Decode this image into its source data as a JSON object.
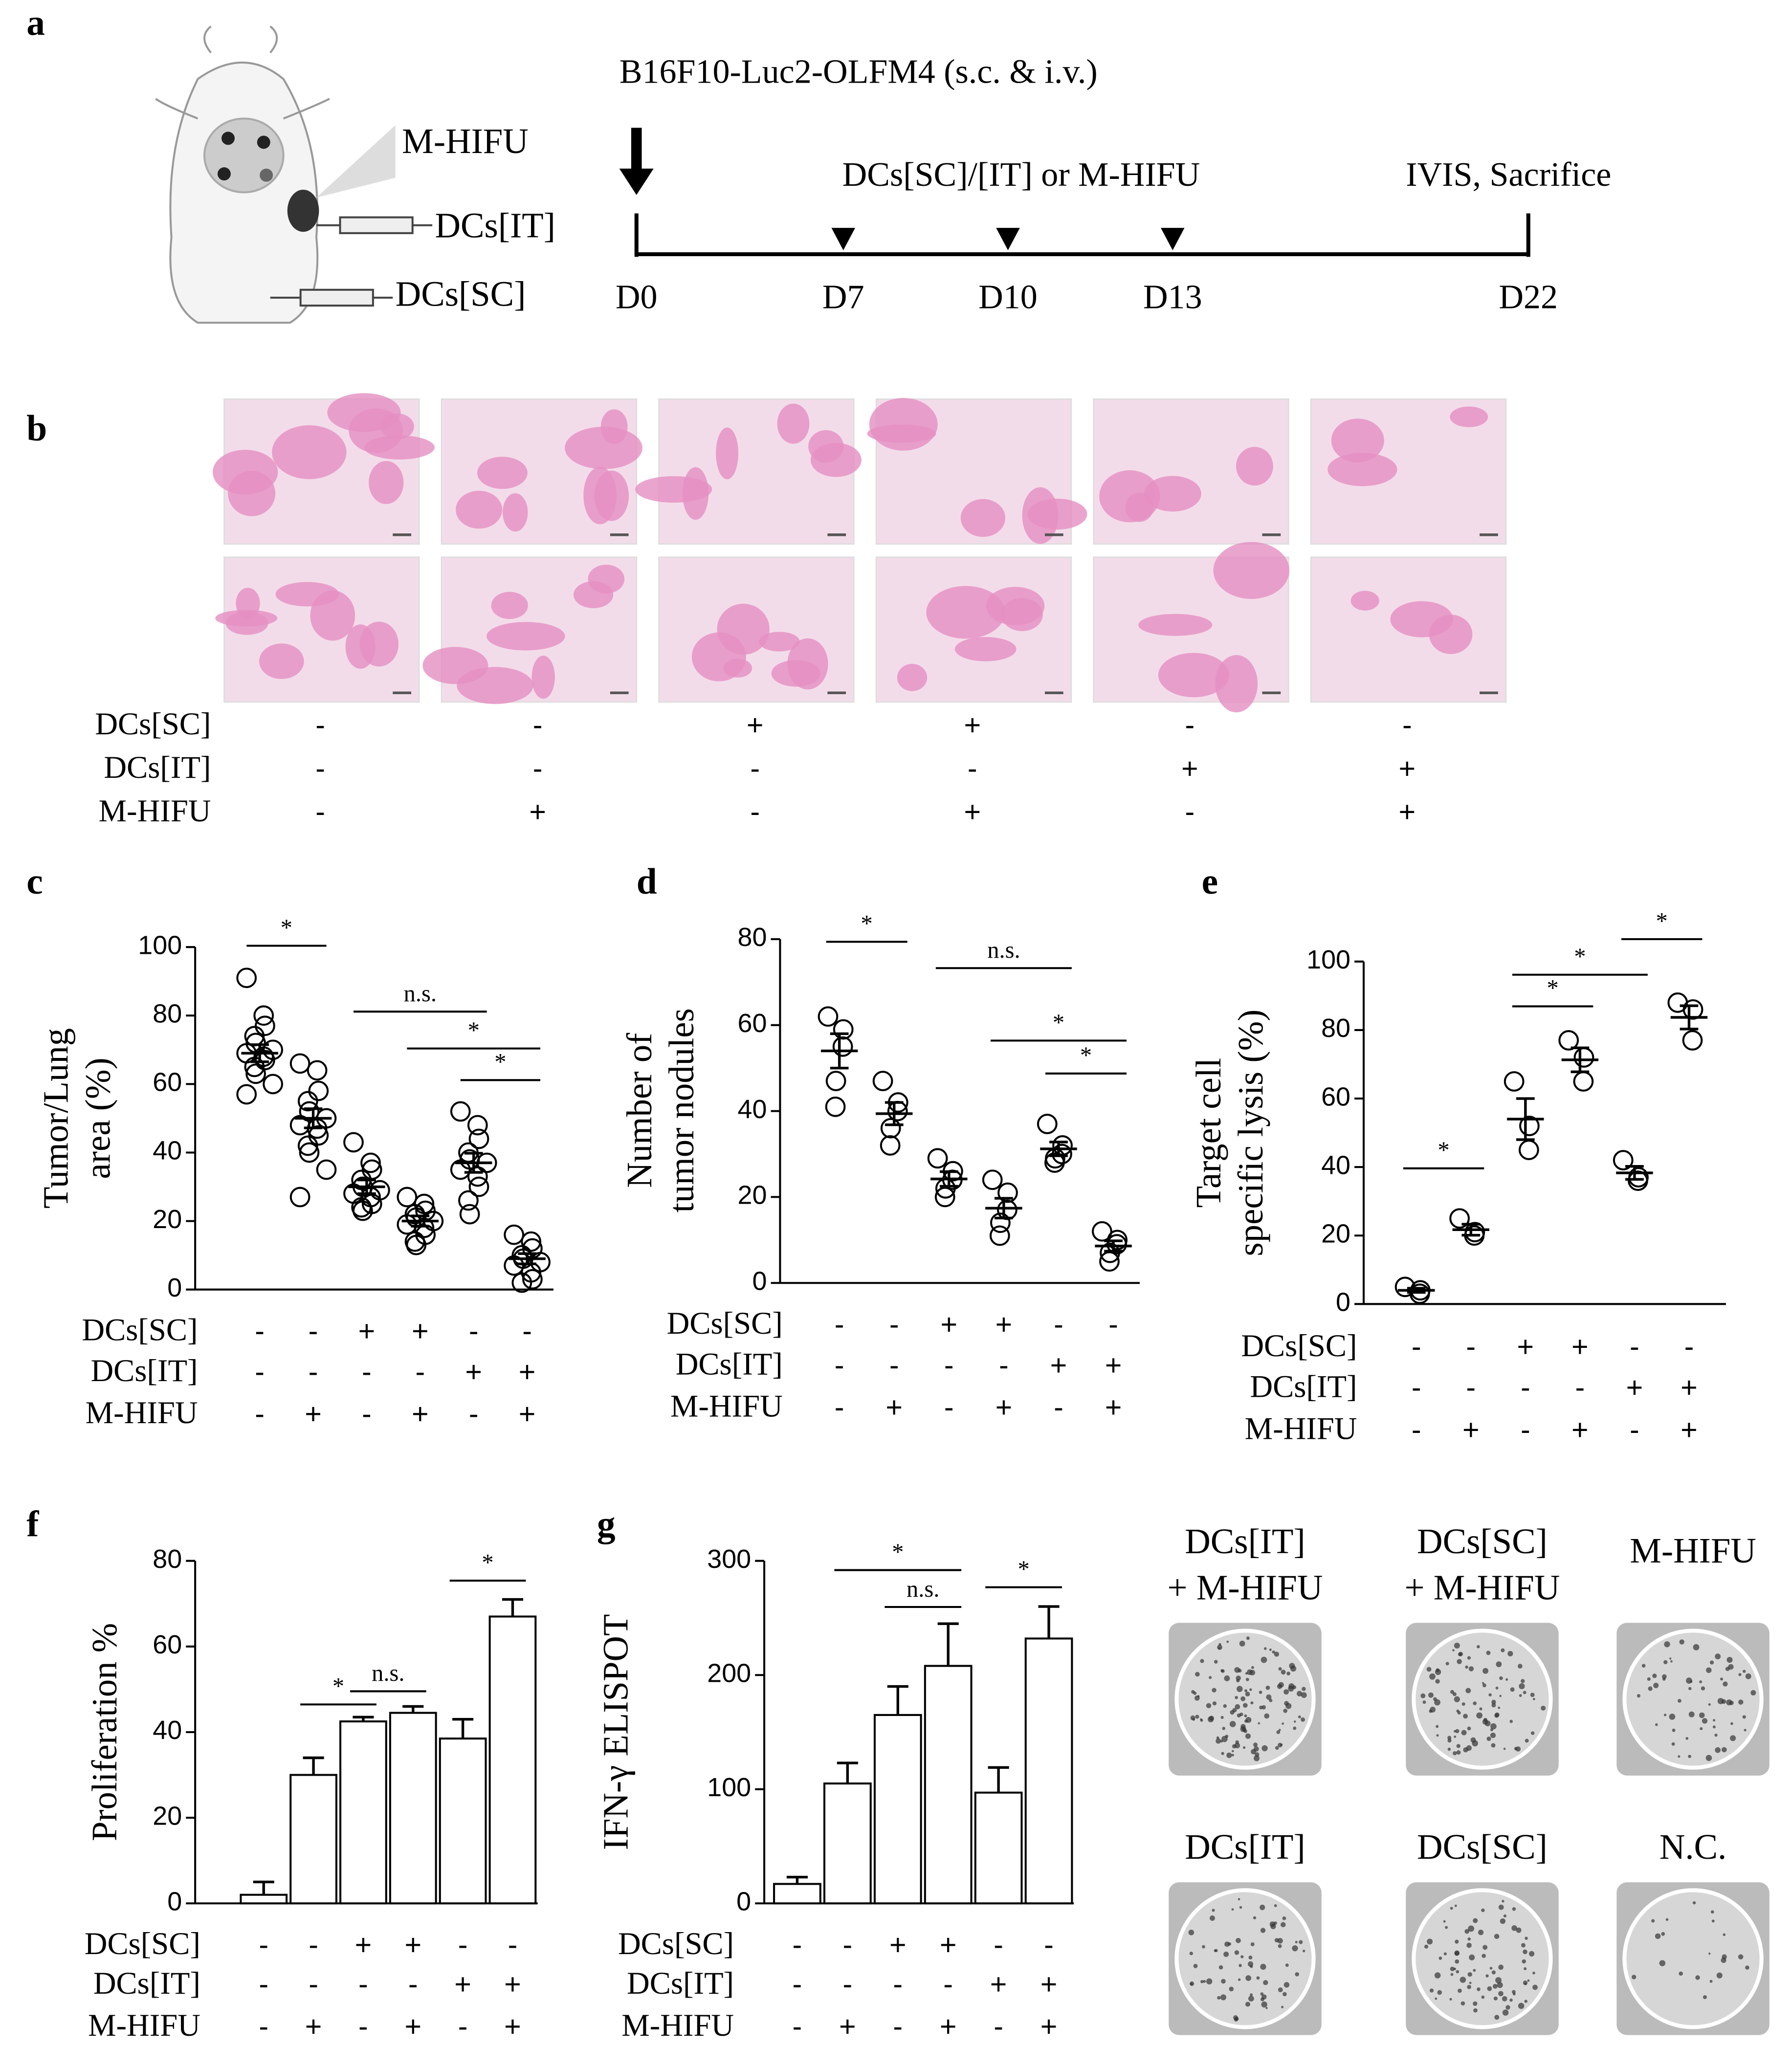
{
  "panel_labels": [
    "a",
    "b",
    "c",
    "d",
    "e",
    "f",
    "g"
  ],
  "schematic": {
    "injection_labels": [
      "M-HIFU",
      "DCs[IT]",
      "DCs[SC]"
    ],
    "cell_line": "B16F10-Luc2-OLFM4 (s.c. & i.v.)",
    "treatment_window": "DCs[SC]/[IT] or M-HIFU",
    "endpoint": "IVIS, Sacrifice",
    "days": [
      "D0",
      "D7",
      "D10",
      "D13",
      "D22"
    ]
  },
  "histology": {
    "treatments": [
      {
        "label": "DCs[SC]",
        "signs": [
          "-",
          "-",
          "+",
          "+",
          "-",
          "-"
        ]
      },
      {
        "label": "DCs[IT]",
        "signs": [
          "-",
          "-",
          "-",
          "-",
          "+",
          "+"
        ]
      },
      {
        "label": "M-HIFU",
        "signs": [
          "-",
          "+",
          "-",
          "+",
          "-",
          "+"
        ]
      }
    ]
  },
  "chart_data": [
    {
      "type": "dotplot",
      "y_label": [
        "Tumor/Lung",
        "area (%)"
      ],
      "ylim": [
        0,
        100
      ],
      "yticks": [
        0,
        20,
        40,
        60,
        80,
        100
      ],
      "values": [
        69,
        50,
        30,
        20,
        37,
        9
      ],
      "errors": [
        2.5,
        2.8,
        2,
        1.5,
        2.8,
        1.5
      ],
      "points": [
        [
          91,
          80,
          77,
          74,
          72,
          70,
          69,
          68,
          67,
          65,
          63,
          60,
          57
        ],
        [
          66,
          64,
          58,
          55,
          52,
          50,
          48,
          47,
          45,
          42,
          40,
          35,
          27
        ],
        [
          43,
          37,
          35,
          32,
          30,
          29,
          28,
          27,
          25,
          24,
          23
        ],
        [
          27,
          25,
          23,
          22,
          21,
          20,
          19,
          18,
          16,
          14,
          13
        ],
        [
          52,
          48,
          44,
          40,
          38,
          37,
          35,
          33,
          30,
          26,
          22
        ],
        [
          16,
          14,
          12,
          10,
          9,
          8,
          7,
          5,
          3,
          2
        ]
      ],
      "comparisons": [
        {
          "label": "*",
          "groups": [
            0,
            1
          ]
        },
        {
          "label": "n.s.",
          "groups": [
            2,
            4
          ]
        },
        {
          "label": "*",
          "groups": [
            3,
            5
          ]
        },
        {
          "label": "*",
          "groups": [
            4,
            5
          ]
        }
      ],
      "treatments": [
        {
          "label": "DCs[SC]",
          "signs": [
            "-",
            "-",
            "+",
            "+",
            "-",
            "-"
          ]
        },
        {
          "label": "DCs[IT]",
          "signs": [
            "-",
            "-",
            "-",
            "-",
            "+",
            "+"
          ]
        },
        {
          "label": "M-HIFU",
          "signs": [
            "-",
            "+",
            "-",
            "+",
            "-",
            "+"
          ]
        }
      ]
    },
    {
      "type": "dotplot",
      "y_label": [
        "Number of",
        "tumor nodules"
      ],
      "ylim": [
        0,
        80
      ],
      "yticks": [
        0,
        20,
        40,
        60,
        80
      ],
      "values": [
        54,
        39.4,
        24.2,
        17.4,
        31.2,
        8.6
      ],
      "errors": [
        4,
        2.6,
        1.7,
        2.3,
        1.6,
        1.2
      ],
      "points": [
        [
          62,
          59,
          55,
          47,
          41
        ],
        [
          47,
          42,
          40,
          36,
          32
        ],
        [
          29,
          26,
          24,
          22,
          20
        ],
        [
          24,
          21,
          17,
          14,
          11
        ],
        [
          37,
          32,
          30,
          29,
          28
        ],
        [
          12,
          10,
          9,
          7,
          5
        ]
      ],
      "comparisons": [
        {
          "label": "*",
          "groups": [
            0,
            1
          ]
        },
        {
          "label": "n.s.",
          "groups": [
            2,
            4
          ]
        },
        {
          "label": "*",
          "groups": [
            3,
            5
          ]
        },
        {
          "label": "*",
          "groups": [
            4,
            5
          ]
        }
      ],
      "treatments": [
        {
          "label": "DCs[SC]",
          "signs": [
            "-",
            "-",
            "+",
            "+",
            "-",
            "-"
          ]
        },
        {
          "label": "DCs[IT]",
          "signs": [
            "-",
            "-",
            "-",
            "-",
            "+",
            "+"
          ]
        },
        {
          "label": "M-HIFU",
          "signs": [
            "-",
            "+",
            "-",
            "+",
            "-",
            "+"
          ]
        }
      ]
    },
    {
      "type": "dotplot",
      "y_label": [
        "Target cell",
        "specific lysis (%)"
      ],
      "ylim": [
        0,
        100
      ],
      "yticks": [
        0,
        20,
        40,
        60,
        80,
        100
      ],
      "values": [
        4,
        21.7,
        54,
        71.3,
        38.3,
        83.7
      ],
      "errors": [
        0.6,
        1.6,
        6,
        3.5,
        1.9,
        3.4
      ],
      "points": [
        [
          5,
          4,
          3
        ],
        [
          25,
          21,
          20
        ],
        [
          65,
          52,
          45
        ],
        [
          77,
          72,
          65
        ],
        [
          42,
          37,
          36
        ],
        [
          88,
          86,
          77
        ]
      ],
      "comparisons": [
        {
          "label": "*",
          "groups": [
            0,
            1
          ]
        },
        {
          "label": "*",
          "groups": [
            2,
            3
          ]
        },
        {
          "label": "*",
          "groups": [
            2,
            4
          ]
        },
        {
          "label": "*",
          "groups": [
            4,
            5
          ]
        }
      ],
      "treatments": [
        {
          "label": "DCs[SC]",
          "signs": [
            "-",
            "-",
            "+",
            "+",
            "-",
            "-"
          ]
        },
        {
          "label": "DCs[IT]",
          "signs": [
            "-",
            "-",
            "-",
            "-",
            "+",
            "+"
          ]
        },
        {
          "label": "M-HIFU",
          "signs": [
            "-",
            "+",
            "-",
            "+",
            "-",
            "+"
          ]
        }
      ]
    },
    {
      "type": "bar",
      "y_label": [
        "Proliferation %"
      ],
      "ylim": [
        0,
        80
      ],
      "yticks": [
        0,
        20,
        40,
        60,
        80
      ],
      "values": [
        2,
        30,
        42.5,
        44.5,
        38.5,
        67
      ],
      "errors": [
        3,
        4,
        1,
        1.5,
        4.5,
        4
      ],
      "comparisons": [
        {
          "label": "*",
          "groups": [
            1,
            2
          ]
        },
        {
          "label": "n.s.",
          "groups": [
            2,
            3
          ]
        },
        {
          "label": "*",
          "groups": [
            4,
            5
          ]
        }
      ],
      "treatments": [
        {
          "label": "DCs[SC]",
          "signs": [
            "-",
            "-",
            "+",
            "+",
            "-",
            "-"
          ]
        },
        {
          "label": "DCs[IT]",
          "signs": [
            "-",
            "-",
            "-",
            "-",
            "+",
            "+"
          ]
        },
        {
          "label": "M-HIFU",
          "signs": [
            "-",
            "+",
            "-",
            "+",
            "-",
            "+"
          ]
        }
      ]
    },
    {
      "type": "bar",
      "y_label": [
        "IFN-γ ELISPOT"
      ],
      "ylim": [
        0,
        300
      ],
      "yticks": [
        0,
        100,
        200,
        300
      ],
      "values": [
        17,
        105,
        165,
        208,
        97,
        232
      ],
      "errors": [
        6,
        18,
        25,
        37,
        22,
        28
      ],
      "comparisons": [
        {
          "label": "*",
          "groups": [
            1,
            3
          ]
        },
        {
          "label": "n.s.",
          "groups": [
            2,
            3
          ]
        },
        {
          "label": "*",
          "groups": [
            4,
            5
          ]
        }
      ],
      "treatments": [
        {
          "label": "DCs[SC]",
          "signs": [
            "-",
            "-",
            "+",
            "+",
            "-",
            "-"
          ]
        },
        {
          "label": "DCs[IT]",
          "signs": [
            "-",
            "-",
            "-",
            "-",
            "+",
            "+"
          ]
        },
        {
          "label": "M-HIFU",
          "signs": [
            "-",
            "+",
            "-",
            "+",
            "-",
            "+"
          ]
        }
      ]
    }
  ],
  "elispot": {
    "wells": [
      [
        "DCs[IT]",
        "+ M-HIFU"
      ],
      [
        "DCs[SC]",
        "+ M-HIFU"
      ],
      [
        "M-HIFU"
      ],
      [
        "DCs[IT]"
      ],
      [
        "DCs[SC]"
      ],
      [
        "N.C."
      ]
    ]
  }
}
